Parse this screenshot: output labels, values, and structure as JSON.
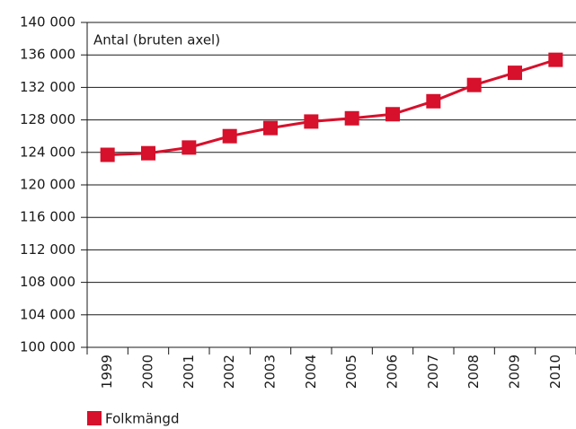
{
  "chart_data": {
    "type": "line",
    "annotation": "Antal (bruten axel)",
    "categories": [
      "1999",
      "2000",
      "2001",
      "2002",
      "2003",
      "2004",
      "2005",
      "2006",
      "2007",
      "2008",
      "2009",
      "2010"
    ],
    "series": [
      {
        "name": "Folkmängd",
        "color": "#d7102b",
        "values": [
          123700,
          123900,
          124600,
          126000,
          127000,
          127800,
          128200,
          128700,
          130300,
          132300,
          133800,
          135400
        ]
      }
    ],
    "ylim": [
      100000,
      140000
    ],
    "yticks": [
      {
        "value": 100000,
        "label": "100 000"
      },
      {
        "value": 104000,
        "label": "104 000"
      },
      {
        "value": 108000,
        "label": "108 000"
      },
      {
        "value": 112000,
        "label": "112 000"
      },
      {
        "value": 116000,
        "label": "116 000"
      },
      {
        "value": 120000,
        "label": "120 000"
      },
      {
        "value": 124000,
        "label": "124 000"
      },
      {
        "value": 128000,
        "label": "128 000"
      },
      {
        "value": 132000,
        "label": "132 000"
      },
      {
        "value": 136000,
        "label": "136 000"
      },
      {
        "value": 140000,
        "label": "140 000"
      }
    ],
    "grid": true,
    "legend": "bottom-left"
  }
}
